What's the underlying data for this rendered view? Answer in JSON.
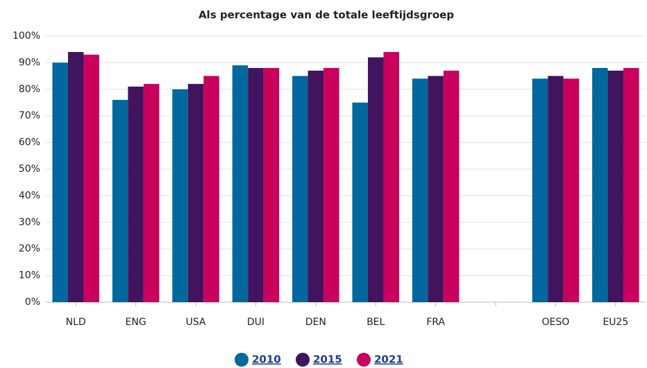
{
  "chart_data": {
    "type": "bar",
    "title": "Als percentage van de totale leeftijdsgroep",
    "categories": [
      "NLD",
      "ENG",
      "USA",
      "DUI",
      "DEN",
      "BEL",
      "FRA",
      null,
      "OESO",
      "EU25"
    ],
    "series": [
      {
        "name": "2010",
        "color": "#00689c",
        "values": [
          90,
          76,
          80,
          89,
          85,
          75,
          84,
          null,
          84,
          88
        ]
      },
      {
        "name": "2015",
        "color": "#42145f",
        "values": [
          94,
          81,
          82,
          88,
          87,
          92,
          85,
          null,
          85,
          87
        ]
      },
      {
        "name": "2021",
        "color": "#ca005d",
        "values": [
          93,
          82,
          85,
          88,
          88,
          94,
          87,
          null,
          84,
          88
        ]
      }
    ],
    "ylim": [
      0,
      100
    ],
    "yticks": [
      {
        "value": 0,
        "label": "0%"
      },
      {
        "value": 10,
        "label": "10%"
      },
      {
        "value": 20,
        "label": "20%"
      },
      {
        "value": 30,
        "label": "30%"
      },
      {
        "value": 40,
        "label": "40%"
      },
      {
        "value": 50,
        "label": "50%"
      },
      {
        "value": 60,
        "label": "60%"
      },
      {
        "value": 70,
        "label": "70%"
      },
      {
        "value": 80,
        "label": "80%"
      },
      {
        "value": 90,
        "label": "90%"
      },
      {
        "value": 100,
        "label": "100%"
      }
    ],
    "grid": true,
    "legend": "bottom"
  }
}
